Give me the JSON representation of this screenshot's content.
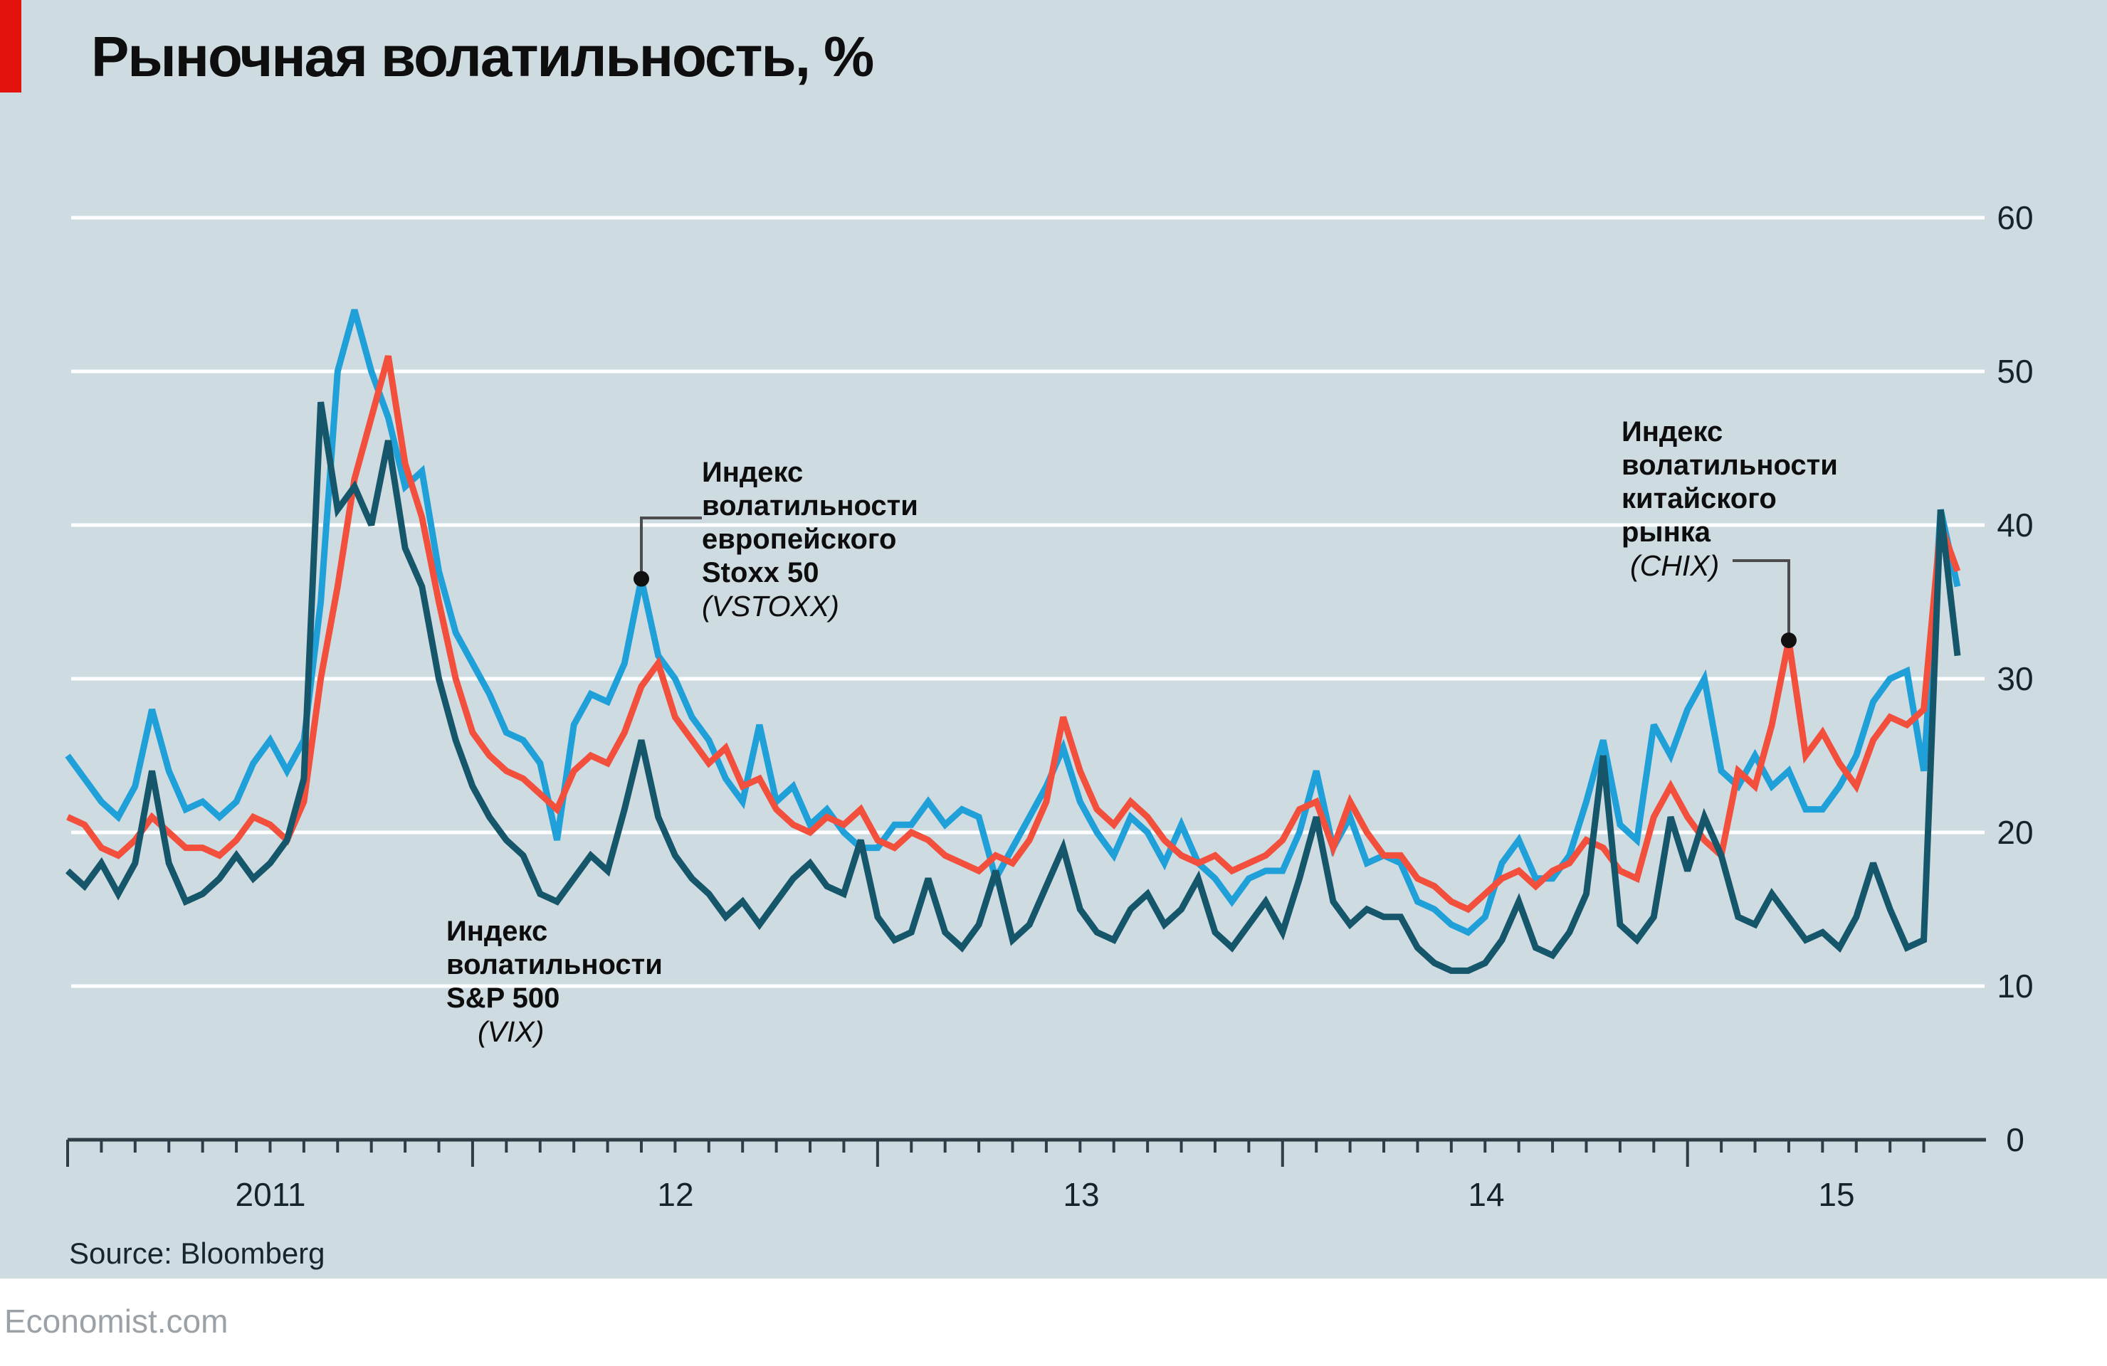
{
  "header": {
    "title": "Рыночная волатильность, %"
  },
  "colors": {
    "background": "#cedbe1",
    "accent_red_tab": "#e3120b",
    "gridline": "#ffffff",
    "axis": "#2f3e46",
    "text_dark": "#0d0d0d",
    "footer_gray": "#9aa2a8"
  },
  "y_axis": {
    "labels": [
      "60",
      "50",
      "40",
      "30",
      "20",
      "10",
      "0"
    ]
  },
  "x_axis": {
    "labels": [
      "2011",
      "12",
      "13",
      "14",
      "15"
    ]
  },
  "annotations": {
    "vstoxx": {
      "lines": [
        "Индекс",
        "волатильности",
        "европейского",
        "Stoxx 50"
      ],
      "tag": "(VSTOXX)"
    },
    "vix": {
      "lines": [
        "Индекс",
        "волатильности",
        "S&P 500"
      ],
      "tag": "(VIX)"
    },
    "chix": {
      "lines": [
        "Индекс",
        "волатильности",
        "китайского",
        "рынка"
      ],
      "tag": "(CHIX)"
    }
  },
  "source": "Source: Bloomberg",
  "footer": "Economist.com",
  "chart_data": {
    "type": "line",
    "title": "Рыночная волатильность, %",
    "ylabel": "",
    "xlabel": "",
    "ylim": [
      0,
      60
    ],
    "yticks": [
      0,
      10,
      20,
      30,
      40,
      50,
      60
    ],
    "grid": "horizontal-white",
    "legend": "inline-annotations",
    "x_start": "2011-01",
    "x_end": "2015-09",
    "points_per_month": 2,
    "x_tick_unit": "month",
    "x_major_tick_unit": "year",
    "series": [
      {
        "name": "VSTOXX",
        "description_ru": "Индекс волатильности европейского Stoxx 50",
        "color": "#1fa0d8",
        "values": [
          25,
          23.5,
          22,
          21,
          23,
          28,
          24,
          21.5,
          22,
          21,
          22,
          24.5,
          26,
          24,
          26,
          35,
          50,
          54,
          50,
          47,
          42.5,
          43.5,
          37,
          33,
          31,
          29,
          26.5,
          26,
          24.5,
          19.5,
          27,
          29,
          28.5,
          31,
          36.5,
          31.5,
          30,
          27.5,
          26,
          23.5,
          22,
          27,
          22,
          23,
          20.5,
          21.5,
          20,
          19,
          19,
          20.5,
          20.5,
          22,
          20.5,
          21.5,
          21,
          17,
          19,
          21,
          23,
          25.5,
          22,
          20,
          18.5,
          21,
          20,
          18,
          20.5,
          18,
          17,
          15.5,
          17,
          17.5,
          17.5,
          20,
          24,
          19,
          21,
          18,
          18.5,
          18,
          15.5,
          15,
          14,
          13.5,
          14.5,
          18,
          19.5,
          17,
          17,
          18.5,
          22,
          26,
          20.5,
          19.5,
          27,
          25,
          28,
          30,
          24,
          23,
          25,
          23,
          24,
          21.5,
          21.5,
          23,
          25,
          28.5,
          30,
          30.5,
          24,
          41,
          36
        ]
      },
      {
        "name": "CHIX",
        "description_ru": "Индекс волатильности китайского рынка",
        "color": "#f2503c",
        "values": [
          21,
          20.5,
          19,
          18.5,
          19.5,
          21,
          20,
          19,
          19,
          18.5,
          19.5,
          21,
          20.5,
          19.5,
          22,
          30,
          36,
          43,
          47,
          51,
          44,
          40.5,
          35,
          30,
          26.5,
          25,
          24,
          23.5,
          22.5,
          21.5,
          24,
          25,
          24.5,
          26.5,
          29.5,
          31,
          27.5,
          26,
          24.5,
          25.5,
          23,
          23.5,
          21.5,
          20.5,
          20,
          21,
          20.5,
          21.5,
          19.5,
          19,
          20,
          19.5,
          18.5,
          18,
          17.5,
          18.5,
          18,
          19.5,
          22,
          27.5,
          24,
          21.5,
          20.5,
          22,
          21,
          19.5,
          18.5,
          18,
          18.5,
          17.5,
          18,
          18.5,
          19.5,
          21.5,
          22,
          19,
          22,
          20,
          18.5,
          18.5,
          17,
          16.5,
          15.5,
          15,
          16,
          17,
          17.5,
          16.5,
          17.5,
          18,
          19.5,
          19,
          17.5,
          17,
          21,
          23,
          21,
          19.5,
          18.5,
          24,
          23,
          27,
          32.5,
          25,
          26.5,
          24.5,
          23,
          26,
          27.5,
          27,
          28,
          40,
          37
        ]
      },
      {
        "name": "VIX",
        "description_ru": "Индекс волатильности S&P 500",
        "color": "#15566b",
        "values": [
          17.5,
          16.5,
          18,
          16,
          18,
          24,
          18,
          15.5,
          16,
          17,
          18.5,
          17,
          18,
          19.5,
          23.5,
          48,
          41,
          42.5,
          40,
          45.5,
          38.5,
          36,
          30,
          26,
          23,
          21,
          19.5,
          18.5,
          16,
          15.5,
          17,
          18.5,
          17.5,
          21.5,
          26,
          21,
          18.5,
          17,
          16,
          14.5,
          15.5,
          14,
          15.5,
          17,
          18,
          16.5,
          16,
          19.5,
          14.5,
          13,
          13.5,
          17,
          13.5,
          12.5,
          14,
          17.5,
          13,
          14,
          16.5,
          19,
          15,
          13.5,
          13,
          15,
          16,
          14,
          15,
          17,
          13.5,
          12.5,
          14,
          15.5,
          13.5,
          17,
          21,
          15.5,
          14,
          15,
          14.5,
          14.5,
          12.5,
          11.5,
          11,
          11,
          11.5,
          13,
          15.5,
          12.5,
          12,
          13.5,
          16,
          25,
          14,
          13,
          14.5,
          21,
          17.5,
          21,
          18.5,
          14.5,
          14,
          16,
          14.5,
          13,
          13.5,
          12.5,
          14.5,
          18,
          15,
          12.5,
          13,
          41,
          31.5
        ]
      }
    ],
    "callouts": [
      {
        "series": "VSTOXX",
        "index": 34,
        "value": 36.5,
        "label": "(VSTOXX)"
      },
      {
        "series": "CHIX",
        "index": 102,
        "value": 32.5,
        "label": "(CHIX)"
      }
    ]
  }
}
